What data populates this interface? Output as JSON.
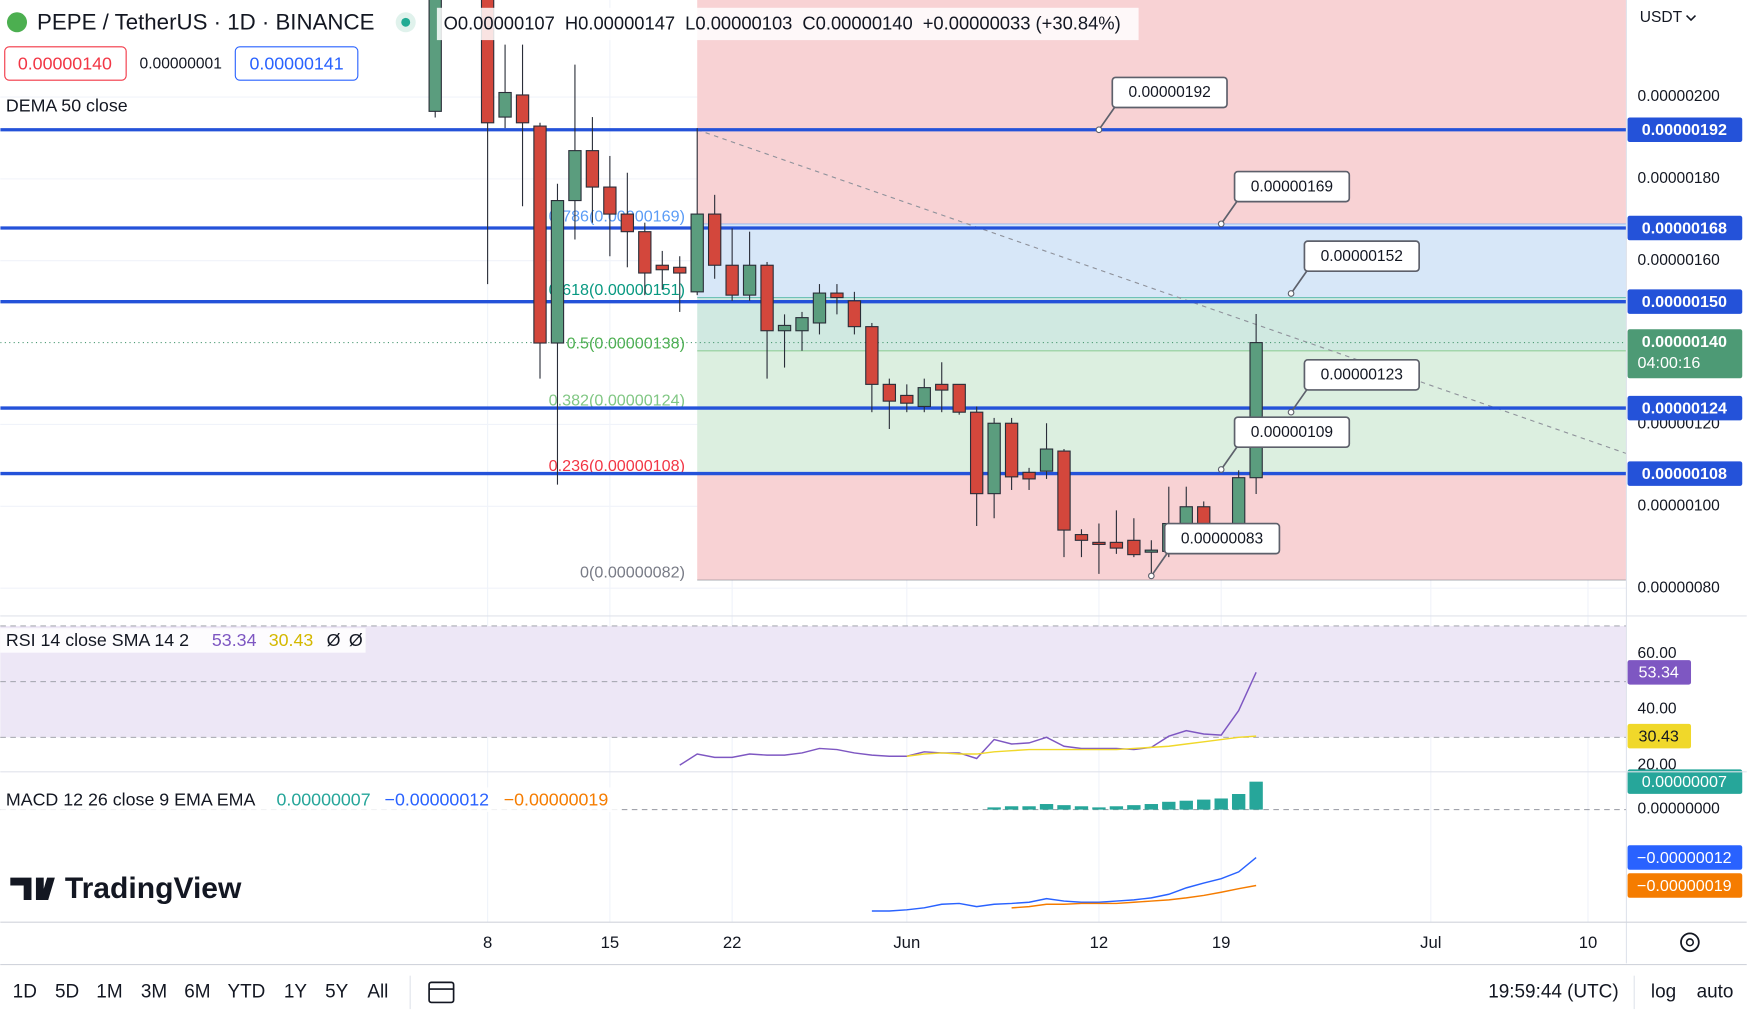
{
  "header": {
    "symbol": "PEPE / TetherUS · 1D · BINANCE",
    "ohlc": [
      "O0.00000107",
      "H0.00000147",
      "L0.00000103",
      "C0.00000140",
      "+0.00000033 (+30.84%)"
    ],
    "sell": "0.00000140",
    "spread": "0.00000001",
    "buy": "0.00000141",
    "indicator": "DEMA 50 close",
    "currency": "USDT"
  },
  "chart_data": [
    {
      "type": "candlestick",
      "x": [
        5,
        8,
        9,
        10,
        11,
        12,
        13,
        14,
        15,
        16,
        17,
        18,
        19,
        20,
        21,
        22,
        23,
        24,
        25,
        26,
        27,
        28,
        29,
        30,
        31,
        32,
        33,
        34,
        35,
        36,
        37,
        38,
        39,
        40,
        41,
        42,
        43,
        44,
        45,
        46,
        47,
        48,
        49,
        50,
        51,
        52
      ],
      "open": [
        1.965e-06,
        2.4e-06,
        1.951e-06,
        2.005e-06,
        1.929e-06,
        1.399e-06,
        1.747e-06,
        1.869e-06,
        1.78e-06,
        1.714e-06,
        1.671e-06,
        1.589e-06,
        1.584e-06,
        1.524e-06,
        1.714e-06,
        1.589e-06,
        1.516e-06,
        1.589e-06,
        1.429e-06,
        1.429e-06,
        1.448e-06,
        1.521e-06,
        1.502e-06,
        1.439e-06,
        1.298e-06,
        1.271e-06,
        1.244e-06,
        1.298e-06,
        1.298e-06,
        1.23e-06,
        1.031e-06,
        1.203e-06,
        1.083e-06,
        1.086e-06,
        1.135e-06,
        9.31e-07,
        9.12e-07,
        9.12e-07,
        9.17e-07,
        8.88e-07,
        8.9e-07,
        9.58e-07,
        9.99e-07,
        9.36e-07,
        9.52e-07,
        1.07e-06
      ],
      "high": [
        2.5e-06,
        2.5e-06,
        2.128e-06,
        2.128e-06,
        1.937e-06,
        1.788e-06,
        2.079e-06,
        1.951e-06,
        1.856e-06,
        1.815e-06,
        1.693e-06,
        1.624e-06,
        1.611e-06,
        1.924e-06,
        1.761e-06,
        1.679e-06,
        1.671e-06,
        1.597e-06,
        1.469e-06,
        1.475e-06,
        1.543e-06,
        1.543e-06,
        1.524e-06,
        1.448e-06,
        1.312e-06,
        1.298e-06,
        1.312e-06,
        1.352e-06,
        1.298e-06,
        1.244e-06,
        1.216e-06,
        1.216e-06,
        1.094e-06,
        1.203e-06,
        1.14e-06,
        9.44e-07,
        9.58e-07,
        9.9e-07,
        9.71e-07,
        9.17e-07,
        1.048e-06,
        1.048e-06,
        1.012e-06,
        9.58e-07,
        1.088e-06,
        1.47e-06
      ],
      "low": [
        1.95e-06,
        1.543e-06,
        1.924e-06,
        1.733e-06,
        1.312e-06,
        1.053e-06,
        1.652e-06,
        1.693e-06,
        1.611e-06,
        1.584e-06,
        1.516e-06,
        1.529e-06,
        1.475e-06,
        1.516e-06,
        1.556e-06,
        1.502e-06,
        1.502e-06,
        1.312e-06,
        1.339e-06,
        1.38e-06,
        1.42e-06,
        1.469e-06,
        1.42e-06,
        1.23e-06,
        1.189e-06,
        1.23e-06,
        1.23e-06,
        1.23e-06,
        1.224e-06,
        9.52e-07,
        9.71e-07,
        1.04e-06,
        1.04e-06,
        1.067e-06,
        8.76e-07,
        8.76e-07,
        8.35e-07,
        8.84e-07,
        8.76e-07,
        8.27e-07,
        8.76e-07,
        9.36e-07,
        9.17e-07,
        9.03e-07,
        9.36e-07,
        1.03e-06
      ],
      "close": [
        2.35e-06,
        1.937e-06,
        2.011e-06,
        1.937e-06,
        1.399e-06,
        1.747e-06,
        1.869e-06,
        1.78e-06,
        1.714e-06,
        1.671e-06,
        1.57e-06,
        1.578e-06,
        1.57e-06,
        1.714e-06,
        1.589e-06,
        1.516e-06,
        1.589e-06,
        1.429e-06,
        1.442e-06,
        1.461e-06,
        1.521e-06,
        1.51e-06,
        1.439e-06,
        1.298e-06,
        1.257e-06,
        1.252e-06,
        1.29e-06,
        1.284e-06,
        1.23e-06,
        1.031e-06,
        1.203e-06,
        1.072e-06,
        1.067e-06,
        1.14e-06,
        9.42e-07,
        9.17e-07,
        9.07e-07,
        8.98e-07,
        8.82e-07,
        8.93e-07,
        9.58e-07,
        9.99e-07,
        9.36e-07,
        9.25e-07,
        1.07e-06,
        1.4e-06
      ],
      "up_color": "#5b9d7e",
      "down_color": "#d3473c",
      "xlim": [
        -19.9,
        73.2
      ],
      "xticks": [
        8,
        15,
        22,
        {
          "value": 32,
          "label": "Jun"
        },
        {
          "value": 43,
          "label": "12"
        },
        {
          "value": 50,
          "label": "19"
        },
        {
          "value": 62,
          "label": "Jul"
        },
        {
          "value": 71,
          "label": "10"
        }
      ],
      "ylim": [
        7.35e-07,
        2.237e-06
      ],
      "yticks": [
        {
          "value": 8e-07,
          "label": "0.00000080"
        },
        {
          "value": 1e-06,
          "label": "0.00000100"
        },
        {
          "value": 1.2e-06,
          "label": "0.00000120"
        },
        {
          "value": 1.6e-06,
          "label": "0.00000160"
        },
        {
          "value": 1.8e-06,
          "label": "0.00000180"
        },
        {
          "value": 2e-06,
          "label": "0.00000200"
        }
      ],
      "grid": true,
      "levels": [
        {
          "value": 1.92e-06,
          "label": "0.00000192"
        },
        {
          "value": 1.68e-06,
          "label": "0.00000168"
        },
        {
          "value": 1.5e-06,
          "label": "0.00000150"
        },
        {
          "value": 1.24e-06,
          "label": "0.00000124"
        },
        {
          "value": 1.08e-06,
          "label": "0.00000108"
        }
      ],
      "level_color": "#2452d9",
      "last_price": {
        "value": 1.4e-06,
        "label": "0.00000140",
        "countdown": "04:00:16",
        "color": "#4d9a75"
      },
      "fib": {
        "x": 20,
        "top_color": "#f8d2d4",
        "levels": [
          {
            "label": "0.786(0.00000169)",
            "price": 1.69e-06,
            "color": "#5b9cf6",
            "zone_color": "#d7e7f8"
          },
          {
            "label": "0.618(0.00000151)",
            "price": 1.51e-06,
            "color": "#089981",
            "zone_color": "#d0e9e1"
          },
          {
            "label": "0.5(0.00000138)",
            "price": 1.38e-06,
            "color": "#4caf50",
            "zone_color": "#dcefe0"
          },
          {
            "label": "0.382(0.00000124)",
            "price": 1.24e-06,
            "color": "#81c784",
            "zone_color": "#dcefe0"
          },
          {
            "label": "0.236(0.00000108)",
            "price": 1.08e-06,
            "color": "#f23645",
            "zone_color": "#f8d2d4"
          },
          {
            "label": "0(0.00000082)",
            "price": 8.2e-07,
            "color": "#787b86"
          }
        ]
      },
      "trend_line": {
        "x": [
          20,
          73.2
        ],
        "y": [
          1.92e-06,
          1.129e-06
        ]
      },
      "annotations": [
        {
          "label": "0.00000192",
          "x": 43,
          "value": 1.92e-06
        },
        {
          "label": "0.00000169",
          "x": 50,
          "value": 1.69e-06
        },
        {
          "label": "0.00000152",
          "x": 54,
          "value": 1.52e-06
        },
        {
          "label": "0.00000123",
          "x": 54,
          "value": 1.23e-06
        },
        {
          "label": "0.00000109",
          "x": 50,
          "value": 1.09e-06
        },
        {
          "label": "0.00000083",
          "x": 46,
          "value": 8.3e-07
        }
      ]
    },
    {
      "type": "line",
      "title": "RSI 14 close SMA 14 2",
      "series": [
        {
          "color": "#7e57c2",
          "value_label": "53.34",
          "x": [
            19,
            20,
            21,
            22,
            23,
            24,
            25,
            26,
            27,
            28,
            29,
            30,
            31,
            32,
            33,
            34,
            35,
            36,
            37,
            38,
            39,
            40,
            41,
            42,
            43,
            44,
            45,
            46,
            47,
            48,
            49,
            50,
            51,
            52
          ],
          "values": [
            20,
            24,
            22.8,
            22.8,
            24,
            23.6,
            23.6,
            24.4,
            26,
            25.6,
            24.4,
            23.6,
            23.2,
            23.2,
            24.8,
            24.4,
            24.4,
            22.4,
            29.2,
            27.6,
            28,
            30,
            26.8,
            26,
            26,
            26,
            25.6,
            26.4,
            30.4,
            32.4,
            31.2,
            30.8,
            39.6,
            53.34
          ]
        },
        {
          "color": "#f0d82a",
          "value_label": "30.43",
          "x": [
            32,
            33,
            34,
            35,
            36,
            37,
            38,
            39,
            40,
            41,
            42,
            43,
            44,
            45,
            46,
            47,
            48,
            49,
            50,
            51,
            52
          ],
          "values": [
            23.2,
            24,
            24.4,
            24,
            24,
            24.8,
            25.2,
            25.6,
            25.6,
            25.6,
            25.6,
            25.6,
            25.6,
            26,
            26.4,
            26.8,
            27.6,
            28.4,
            29.2,
            30,
            30.43
          ]
        }
      ],
      "extra_legend": [
        "Ø",
        "Ø"
      ],
      "ylim": [
        18,
        72.8
      ],
      "yticks": [
        {
          "value": 20,
          "label": "20.00"
        },
        {
          "value": 40,
          "label": "40.00"
        },
        {
          "value": 60,
          "label": "60.00"
        }
      ],
      "band": [
        30,
        70
      ],
      "midline": 50,
      "band_color": "#ede7f6"
    },
    {
      "type": "macd",
      "title": "MACD 12 26 close 9 EMA EMA",
      "histogram": {
        "color": "#26a69a",
        "value_label": "0.00000007",
        "x": [
          37,
          38,
          39,
          40,
          41,
          42,
          43,
          44,
          45,
          46,
          47,
          48,
          49,
          50,
          51,
          52
        ],
        "values": [
          5.6e-09,
          8.4e-09,
          8.4e-09,
          1.4e-08,
          1.12e-08,
          8.4e-09,
          5.6e-09,
          8.4e-09,
          1.12e-08,
          1.4e-08,
          1.96e-08,
          2.23e-08,
          2.51e-08,
          2.79e-08,
          3.91e-08,
          7e-08
        ]
      },
      "series": [
        {
          "color": "#2962ff",
          "value_label": "−0.00000012",
          "x": [
            30,
            31,
            32,
            33,
            34,
            35,
            36,
            37,
            38,
            39,
            40,
            41,
            42,
            43,
            44,
            45,
            46,
            47,
            48,
            49,
            50,
            51,
            52
          ],
          "values": [
            -2.54e-07,
            -2.54e-07,
            -2.51e-07,
            -2.46e-07,
            -2.37e-07,
            -2.35e-07,
            -2.43e-07,
            -2.37e-07,
            -2.35e-07,
            -2.32e-07,
            -2.23e-07,
            -2.29e-07,
            -2.32e-07,
            -2.32e-07,
            -2.29e-07,
            -2.26e-07,
            -2.21e-07,
            -2.12e-07,
            -1.96e-07,
            -1.84e-07,
            -1.73e-07,
            -1.56e-07,
            -1.2e-07
          ]
        },
        {
          "color": "#f57c00",
          "value_label": "−0.00000019",
          "x": [
            38,
            39,
            40,
            41,
            42,
            43,
            44,
            45,
            46,
            47,
            48,
            49,
            50,
            51,
            52
          ],
          "values": [
            -2.46e-07,
            -2.43e-07,
            -2.37e-07,
            -2.37e-07,
            -2.35e-07,
            -2.35e-07,
            -2.35e-07,
            -2.32e-07,
            -2.29e-07,
            -2.26e-07,
            -2.21e-07,
            -2.15e-07,
            -2.07e-07,
            -1.98e-07,
            -1.9e-07
          ]
        }
      ],
      "ylim": [
        -2.82e-07,
        8.9e-08
      ],
      "yticks": [
        {
          "value": 0,
          "label": "0.00000000"
        }
      ]
    }
  ],
  "toolbar": {
    "ranges": [
      "1D",
      "5D",
      "1M",
      "3M",
      "6M",
      "YTD",
      "1Y",
      "5Y",
      "All"
    ],
    "time": "19:59:44 (UTC)",
    "log": "log",
    "auto": "auto"
  },
  "watermark": "TradingView"
}
